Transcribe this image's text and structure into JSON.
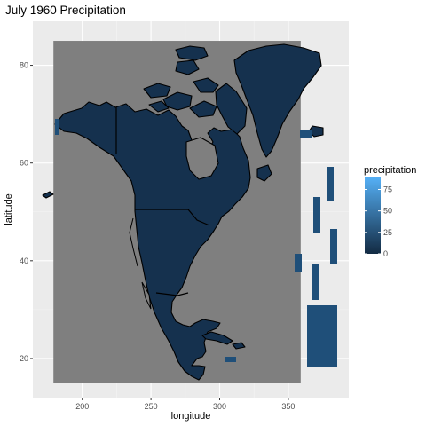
{
  "title": "July 1960 Precipitation",
  "axes": {
    "xlabel": "longitude",
    "ylabel": "latitude",
    "x_ticks": [
      200,
      250,
      300,
      350
    ],
    "y_ticks": [
      20,
      40,
      60,
      80
    ],
    "xlim": [
      164,
      394
    ],
    "ylim": [
      12,
      89
    ],
    "grid": true
  },
  "legend": {
    "title": "precipitation",
    "breaks": [
      75,
      50,
      25,
      0
    ],
    "range": [
      0,
      90
    ],
    "color_low": "#132b43",
    "color_high": "#56b1f7"
  },
  "colors": {
    "panel_bg": "#ebebeb",
    "no_data": "#7f7f7f",
    "land_low": "#132b43",
    "land_mid": "#1c4063"
  },
  "chart_data": {
    "type": "heatmap",
    "variable": "precipitation",
    "x_extent": [
      179,
      359
    ],
    "y_extent": [
      15,
      85
    ]
  }
}
